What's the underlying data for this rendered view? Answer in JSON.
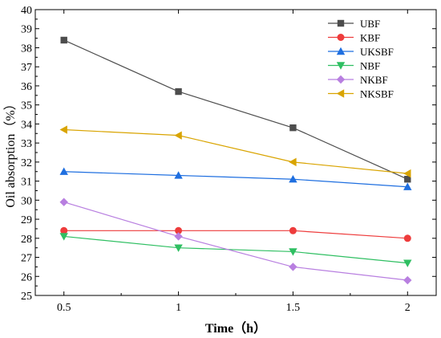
{
  "chart_data": {
    "type": "line",
    "title": "",
    "xlabel": "Time（h）",
    "ylabel": "Oil absorption（%）",
    "x": [
      0.5,
      1,
      1.5,
      2
    ],
    "x_tick_labels": [
      "0.5",
      "1",
      "1.5",
      "2"
    ],
    "ylim": [
      25,
      40
    ],
    "y_ticks": [
      25,
      26,
      27,
      28,
      29,
      30,
      31,
      32,
      33,
      34,
      35,
      36,
      37,
      38,
      39,
      40
    ],
    "grid": false,
    "legend_position": "top-right",
    "series": [
      {
        "name": "UBF",
        "values": [
          38.4,
          35.7,
          33.8,
          31.1
        ],
        "color": "#4d4d4d",
        "marker": "square"
      },
      {
        "name": "KBF",
        "values": [
          28.4,
          28.4,
          28.4,
          28.0
        ],
        "color": "#ee3c3c",
        "marker": "circle"
      },
      {
        "name": "UKSBF",
        "values": [
          31.5,
          31.3,
          31.1,
          30.7
        ],
        "color": "#1f6fe0",
        "marker": "triangle-up"
      },
      {
        "name": "NBF",
        "values": [
          28.1,
          27.5,
          27.3,
          26.7
        ],
        "color": "#2fbf62",
        "marker": "triangle-down"
      },
      {
        "name": "NKBF",
        "values": [
          29.9,
          28.1,
          26.5,
          25.8
        ],
        "color": "#b87fe0",
        "marker": "diamond"
      },
      {
        "name": "NKSBF",
        "values": [
          33.7,
          33.4,
          32.0,
          31.4
        ],
        "color": "#d9a400",
        "marker": "triangle-left"
      }
    ]
  }
}
